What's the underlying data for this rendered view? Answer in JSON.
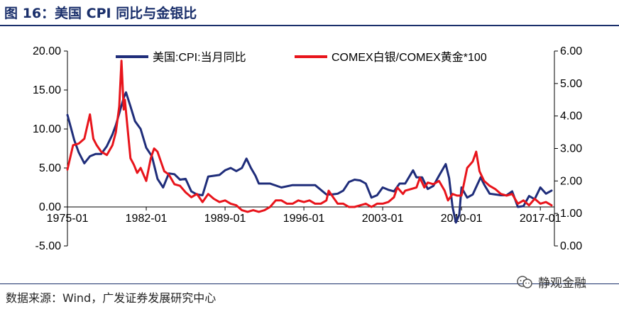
{
  "header": {
    "title": "图 16：美国 CPI 同比与金银比"
  },
  "footer": {
    "source": "数据来源：Wind，广发证券发展研究中心"
  },
  "watermark": {
    "text": "静观金融"
  },
  "colors": {
    "cpi": "#1f2d7a",
    "ratio": "#e8141b",
    "title": "#1a2f6b"
  },
  "chart_data": {
    "type": "line",
    "title": "",
    "xlabel": "",
    "ylabel": "",
    "x_tick_labels": [
      "1975-01",
      "1982-01",
      "1989-01",
      "1996-01",
      "2003-01",
      "2010-01",
      "2017-01"
    ],
    "x_range": [
      1975.0,
      2018.25
    ],
    "y_left_ticks": [
      "20.00",
      "15.00",
      "10.00",
      "5.00",
      "0.00",
      "-5.00"
    ],
    "y_left_range": [
      -5,
      20
    ],
    "y_right_ticks": [
      "6.00",
      "5.00",
      "4.00",
      "3.00",
      "2.00",
      "1.00",
      "0.00"
    ],
    "y_right_range": [
      0,
      6
    ],
    "legend_position": "top",
    "grid": false,
    "series": [
      {
        "name": "美国:CPI:当月同比",
        "axis": "left",
        "x": [
          1975.0,
          1975.3,
          1975.6,
          1976.0,
          1976.5,
          1977.0,
          1977.5,
          1978.0,
          1978.5,
          1979.0,
          1979.3,
          1979.6,
          1980.0,
          1980.2,
          1980.6,
          1981.0,
          1981.5,
          1982.0,
          1982.5,
          1983.0,
          1983.5,
          1984.0,
          1984.5,
          1985.0,
          1985.5,
          1986.0,
          1986.5,
          1987.0,
          1987.5,
          1988.0,
          1988.5,
          1989.0,
          1989.5,
          1990.0,
          1990.5,
          1990.9,
          1991.3,
          1991.7,
          1992.0,
          1993.0,
          1994.0,
          1995.0,
          1996.0,
          1997.0,
          1998.0,
          1998.5,
          1999.0,
          1999.5,
          2000.0,
          2000.5,
          2001.0,
          2001.5,
          2002.0,
          2002.5,
          2003.0,
          2003.5,
          2004.0,
          2004.5,
          2005.0,
          2005.7,
          2006.0,
          2006.5,
          2007.0,
          2007.5,
          2008.0,
          2008.6,
          2008.9,
          2009.2,
          2009.5,
          2009.8,
          2010.0,
          2010.5,
          2011.0,
          2011.7,
          2012.0,
          2012.5,
          2013.0,
          2013.5,
          2014.0,
          2014.5,
          2015.0,
          2015.5,
          2016.0,
          2016.5,
          2017.0,
          2017.5,
          2018.0
        ],
        "values": [
          11.8,
          10.2,
          8.6,
          7.0,
          5.6,
          6.5,
          6.8,
          6.8,
          7.8,
          9.3,
          10.5,
          12.0,
          14.0,
          14.7,
          12.9,
          11.0,
          10.0,
          7.6,
          6.5,
          3.6,
          2.5,
          4.3,
          4.2,
          3.5,
          3.6,
          2.0,
          1.6,
          1.5,
          3.9,
          4.0,
          4.1,
          4.7,
          5.0,
          4.6,
          5.0,
          6.2,
          5.0,
          4.0,
          3.0,
          3.0,
          2.5,
          2.8,
          2.8,
          2.8,
          1.6,
          1.6,
          1.7,
          2.1,
          3.2,
          3.5,
          3.4,
          3.0,
          1.2,
          1.5,
          2.5,
          2.2,
          2.0,
          3.0,
          3.0,
          4.7,
          3.8,
          3.8,
          2.3,
          2.7,
          4.0,
          5.5,
          3.7,
          0.0,
          -2.0,
          -1.0,
          2.5,
          1.2,
          1.6,
          3.8,
          2.9,
          1.7,
          1.6,
          1.5,
          1.5,
          2.0,
          0.0,
          0.1,
          1.4,
          1.0,
          2.5,
          1.7,
          2.1
        ]
      },
      {
        "name": "COMEX白银/COMEX黄金*100",
        "axis": "right",
        "x": [
          1975.0,
          1975.5,
          1976.0,
          1976.5,
          1977.0,
          1977.3,
          1977.6,
          1978.0,
          1978.5,
          1979.0,
          1979.3,
          1979.6,
          1979.8,
          1980.0,
          1980.1,
          1980.4,
          1980.6,
          1980.9,
          1981.2,
          1981.5,
          1982.0,
          1982.4,
          1982.7,
          1983.0,
          1983.3,
          1983.6,
          1984.0,
          1984.5,
          1985.0,
          1985.5,
          1986.0,
          1986.5,
          1987.0,
          1987.5,
          1988.0,
          1988.5,
          1989.0,
          1989.5,
          1990.0,
          1990.5,
          1991.0,
          1991.5,
          1992.0,
          1992.5,
          1993.0,
          1993.5,
          1994.0,
          1994.5,
          1995.0,
          1995.5,
          1996.0,
          1996.5,
          1997.0,
          1997.5,
          1998.0,
          1998.2,
          1998.6,
          1999.0,
          1999.5,
          2000.0,
          2000.5,
          2001.0,
          2001.5,
          2002.0,
          2002.5,
          2003.0,
          2003.5,
          2004.0,
          2004.3,
          2004.8,
          2005.0,
          2005.5,
          2006.0,
          2006.3,
          2006.7,
          2007.0,
          2007.5,
          2008.0,
          2008.5,
          2008.8,
          2009.2,
          2009.6,
          2010.0,
          2010.5,
          2011.0,
          2011.3,
          2011.6,
          2012.0,
          2012.5,
          2013.0,
          2013.5,
          2014.0,
          2014.5,
          2015.0,
          2015.5,
          2016.0,
          2016.5,
          2017.0,
          2017.5,
          2018.0
        ],
        "values": [
          2.35,
          3.1,
          3.15,
          3.3,
          4.05,
          3.3,
          3.1,
          2.9,
          2.8,
          3.1,
          3.5,
          4.3,
          5.7,
          4.2,
          4.5,
          3.4,
          2.7,
          2.5,
          2.25,
          2.4,
          2.0,
          2.7,
          3.0,
          2.9,
          2.6,
          2.3,
          2.2,
          1.9,
          1.85,
          1.65,
          1.5,
          1.6,
          1.35,
          1.6,
          1.45,
          1.35,
          1.4,
          1.3,
          1.25,
          1.1,
          1.05,
          1.1,
          1.05,
          1.1,
          1.2,
          1.4,
          1.4,
          1.3,
          1.3,
          1.4,
          1.35,
          1.4,
          1.3,
          1.3,
          1.4,
          1.7,
          1.5,
          1.3,
          1.3,
          1.2,
          1.2,
          1.25,
          1.3,
          1.2,
          1.3,
          1.3,
          1.35,
          1.5,
          1.8,
          1.6,
          1.7,
          1.75,
          1.8,
          2.1,
          1.8,
          1.95,
          1.9,
          2.0,
          1.7,
          1.4,
          1.6,
          1.55,
          1.55,
          2.4,
          2.6,
          2.9,
          2.3,
          2.0,
          1.85,
          1.75,
          1.6,
          1.55,
          1.6,
          1.3,
          1.4,
          1.25,
          1.45,
          1.3,
          1.35,
          1.25
        ]
      }
    ]
  }
}
